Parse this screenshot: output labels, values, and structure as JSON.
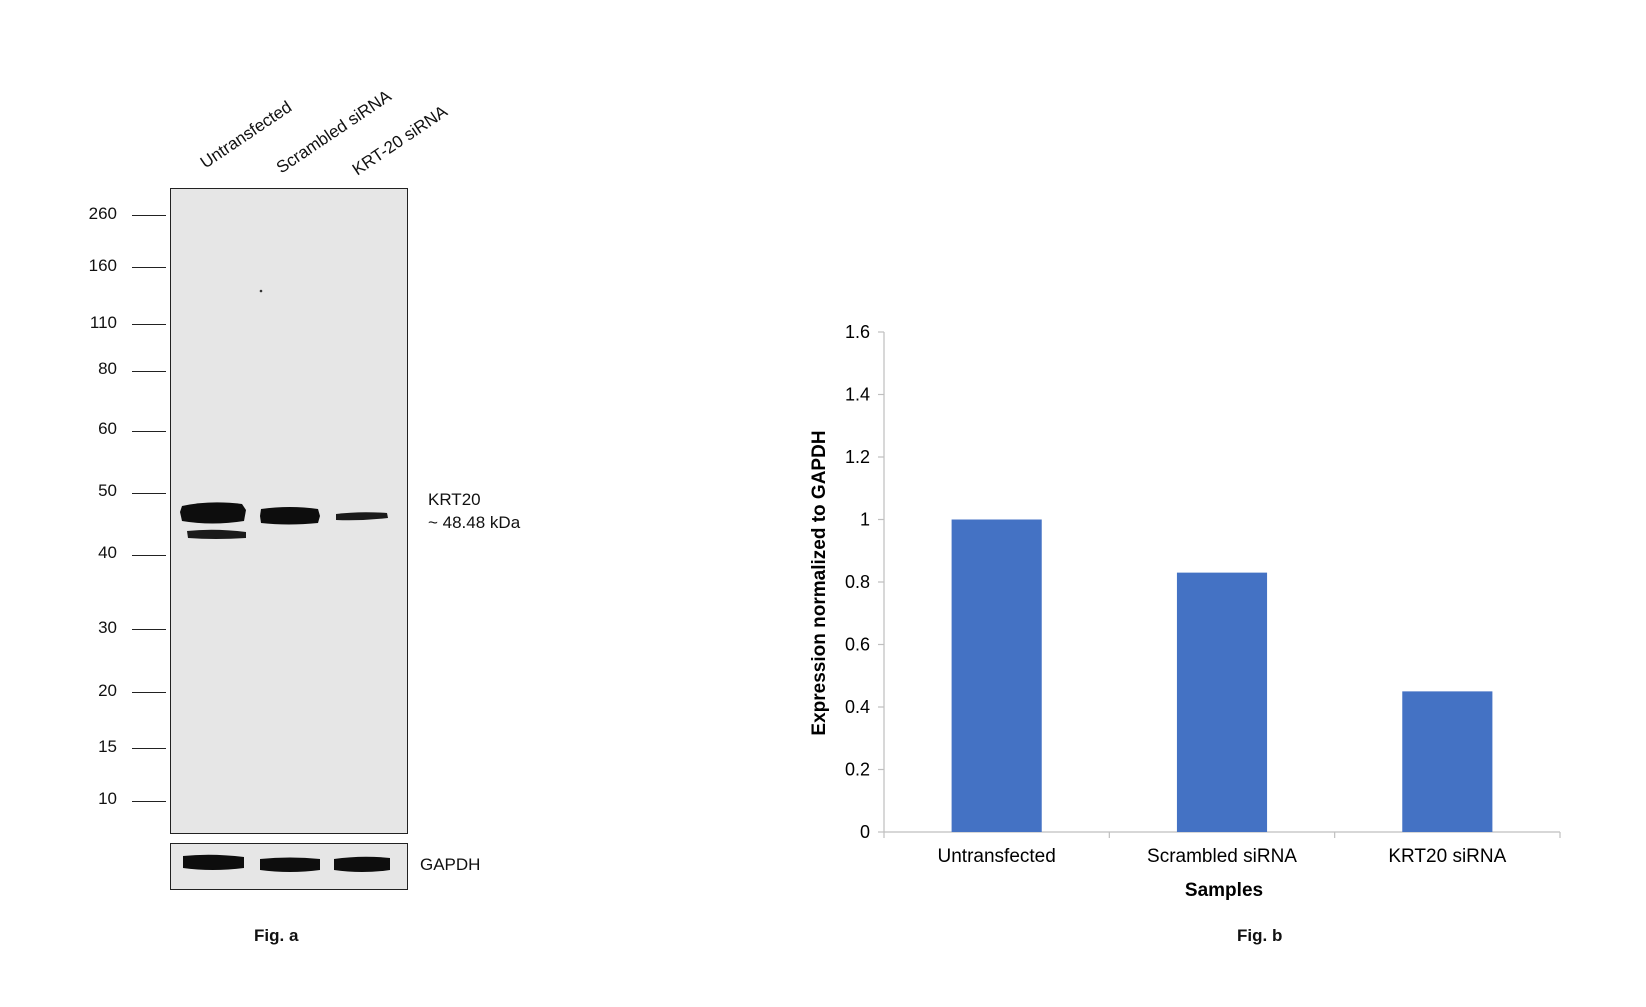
{
  "blot": {
    "lanes": [
      "Untransfected",
      "Scrambled siRNA",
      "KRT-20 siRNA"
    ],
    "markers": [
      "260",
      "160",
      "110",
      "80",
      "60",
      "50",
      "40",
      "30",
      "20",
      "15",
      "10"
    ],
    "band_label": "KRT20",
    "band_size": "~ 48.48 kDa",
    "loading_label": "GAPDH",
    "caption": "Fig. a"
  },
  "chart_data": {
    "type": "bar",
    "categories": [
      "Untransfected",
      "Scrambled siRNA",
      "KRT20 siRNA"
    ],
    "values": [
      1.0,
      0.83,
      0.45
    ],
    "title": "",
    "xlabel": "Samples",
    "ylabel": "Expression normalized to GAPDH",
    "ylim": [
      0,
      1.6
    ],
    "yticks": [
      0,
      0.2,
      0.4,
      0.6,
      0.8,
      1,
      1.2,
      1.4,
      1.6
    ],
    "ytick_labels": [
      "0",
      "0.2",
      "0.4",
      "0.6",
      "0.8",
      "1",
      "1.2",
      "1.4",
      "1.6"
    ],
    "grid": false,
    "bar_color": "#4472C4",
    "caption": "Fig. b"
  }
}
